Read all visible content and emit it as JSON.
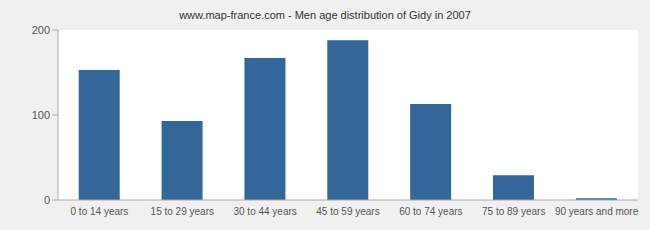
{
  "chart_data": {
    "type": "bar",
    "title": "www.map-france.com - Men age distribution of Gidy in 2007",
    "categories": [
      "0 to 14 years",
      "15 to 29 years",
      "30 to 44 years",
      "45 to 59 years",
      "60 to 74 years",
      "75 to 89 years",
      "90 years and more"
    ],
    "values": [
      153,
      93,
      167,
      188,
      113,
      29,
      2
    ],
    "color": "#336699",
    "ylim": [
      0,
      200
    ],
    "yticks": [
      0,
      100,
      200
    ],
    "grid": true
  }
}
